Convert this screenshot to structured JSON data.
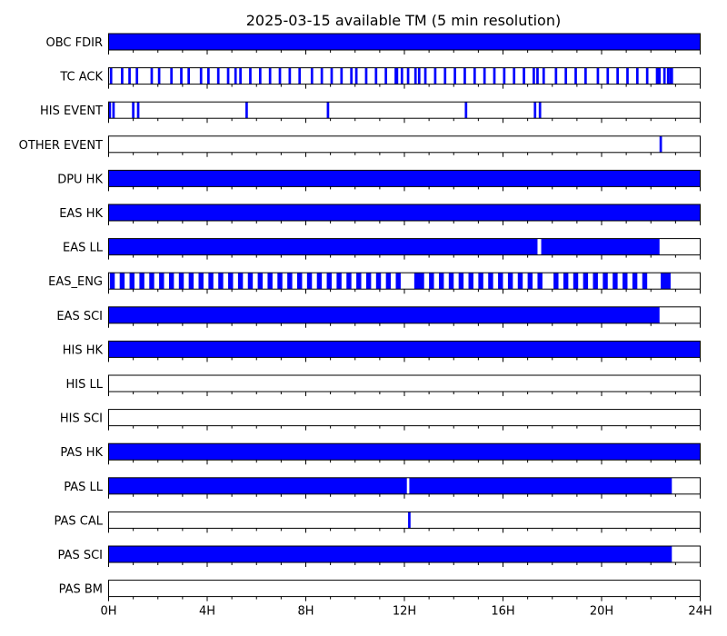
{
  "chart_data": {
    "type": "bar",
    "title": "2025-03-15 available TM (5 min resolution)",
    "xlabel": "",
    "ylabel": "",
    "x_unit": "hours",
    "xlim": [
      0,
      24
    ],
    "x_ticks": [
      0,
      4,
      8,
      12,
      16,
      20,
      24
    ],
    "x_tick_labels": [
      "0H",
      "4H",
      "8H",
      "12H",
      "16H",
      "20H",
      "24H"
    ],
    "minor_tick_step_hours": 1,
    "grid": false,
    "fill_color": "#0000ff",
    "series": [
      {
        "name": "OBC FDIR",
        "intervals": [
          [
            0,
            24
          ]
        ]
      },
      {
        "name": "TC ACK",
        "intervals": [
          [
            0.05,
            0.15
          ],
          [
            0.5,
            0.6
          ],
          [
            0.8,
            0.9
          ],
          [
            1.1,
            1.2
          ],
          [
            1.7,
            1.8
          ],
          [
            2.0,
            2.1
          ],
          [
            2.5,
            2.6
          ],
          [
            2.9,
            3.0
          ],
          [
            3.2,
            3.3
          ],
          [
            3.7,
            3.8
          ],
          [
            4.0,
            4.1
          ],
          [
            4.4,
            4.5
          ],
          [
            4.8,
            4.9
          ],
          [
            5.1,
            5.2
          ],
          [
            5.3,
            5.4
          ],
          [
            5.7,
            5.8
          ],
          [
            6.1,
            6.2
          ],
          [
            6.5,
            6.6
          ],
          [
            6.9,
            7.0
          ],
          [
            7.3,
            7.4
          ],
          [
            7.7,
            7.8
          ],
          [
            8.2,
            8.3
          ],
          [
            8.6,
            8.7
          ],
          [
            9.0,
            9.1
          ],
          [
            9.4,
            9.5
          ],
          [
            9.8,
            9.9
          ],
          [
            10.0,
            10.1
          ],
          [
            10.4,
            10.5
          ],
          [
            10.8,
            10.9
          ],
          [
            11.2,
            11.3
          ],
          [
            11.6,
            11.75
          ],
          [
            11.85,
            11.95
          ],
          [
            12.1,
            12.2
          ],
          [
            12.4,
            12.5
          ],
          [
            12.55,
            12.65
          ],
          [
            12.8,
            12.9
          ],
          [
            13.2,
            13.3
          ],
          [
            13.6,
            13.7
          ],
          [
            14.0,
            14.1
          ],
          [
            14.4,
            14.5
          ],
          [
            14.8,
            14.9
          ],
          [
            15.2,
            15.3
          ],
          [
            15.6,
            15.7
          ],
          [
            16.0,
            16.1
          ],
          [
            16.4,
            16.5
          ],
          [
            16.8,
            16.9
          ],
          [
            17.2,
            17.3
          ],
          [
            17.35,
            17.45
          ],
          [
            17.6,
            17.7
          ],
          [
            18.1,
            18.2
          ],
          [
            18.5,
            18.6
          ],
          [
            18.9,
            19.0
          ],
          [
            19.3,
            19.4
          ],
          [
            19.8,
            19.9
          ],
          [
            20.2,
            20.3
          ],
          [
            20.6,
            20.7
          ],
          [
            21.0,
            21.1
          ],
          [
            21.4,
            21.5
          ],
          [
            21.8,
            21.9
          ],
          [
            22.2,
            22.4
          ],
          [
            22.5,
            22.6
          ],
          [
            22.65,
            22.75
          ],
          [
            22.75,
            22.9
          ]
        ]
      },
      {
        "name": "HIS EVENT",
        "intervals": [
          [
            0,
            0.1
          ],
          [
            0.15,
            0.25
          ],
          [
            0.95,
            1.05
          ],
          [
            1.15,
            1.25
          ],
          [
            5.55,
            5.65
          ],
          [
            8.85,
            8.95
          ],
          [
            14.45,
            14.55
          ],
          [
            17.25,
            17.35
          ],
          [
            17.45,
            17.55
          ]
        ]
      },
      {
        "name": "OTHER EVENT",
        "intervals": [
          [
            22.35,
            22.45
          ]
        ]
      },
      {
        "name": "DPU HK",
        "intervals": [
          [
            0,
            24
          ]
        ]
      },
      {
        "name": "EAS HK",
        "intervals": [
          [
            0,
            24
          ]
        ]
      },
      {
        "name": "EAS LL",
        "intervals": [
          [
            0,
            17.4
          ],
          [
            17.55,
            22.35
          ]
        ]
      },
      {
        "name": "EAS_ENG",
        "intervals": [
          [
            0.05,
            0.25
          ],
          [
            0.45,
            0.65
          ],
          [
            0.85,
            1.05
          ],
          [
            1.25,
            1.45
          ],
          [
            1.65,
            1.85
          ],
          [
            2.05,
            2.25
          ],
          [
            2.45,
            2.65
          ],
          [
            2.85,
            3.05
          ],
          [
            3.25,
            3.45
          ],
          [
            3.65,
            3.85
          ],
          [
            4.05,
            4.25
          ],
          [
            4.45,
            4.65
          ],
          [
            4.85,
            5.05
          ],
          [
            5.25,
            5.45
          ],
          [
            5.65,
            5.85
          ],
          [
            6.05,
            6.25
          ],
          [
            6.45,
            6.65
          ],
          [
            6.85,
            7.05
          ],
          [
            7.25,
            7.45
          ],
          [
            7.65,
            7.85
          ],
          [
            8.05,
            8.25
          ],
          [
            8.45,
            8.65
          ],
          [
            8.85,
            9.05
          ],
          [
            9.25,
            9.45
          ],
          [
            9.65,
            9.85
          ],
          [
            10.05,
            10.25
          ],
          [
            10.45,
            10.65
          ],
          [
            10.85,
            11.05
          ],
          [
            11.25,
            11.45
          ],
          [
            11.65,
            11.85
          ],
          [
            12.4,
            12.8
          ],
          [
            13.0,
            13.2
          ],
          [
            13.4,
            13.6
          ],
          [
            13.8,
            14.0
          ],
          [
            14.2,
            14.4
          ],
          [
            14.6,
            14.8
          ],
          [
            15.0,
            15.2
          ],
          [
            15.4,
            15.6
          ],
          [
            15.8,
            16.0
          ],
          [
            16.2,
            16.4
          ],
          [
            16.6,
            16.8
          ],
          [
            17.0,
            17.2
          ],
          [
            17.4,
            17.6
          ],
          [
            18.05,
            18.25
          ],
          [
            18.45,
            18.65
          ],
          [
            18.85,
            19.05
          ],
          [
            19.25,
            19.45
          ],
          [
            19.65,
            19.85
          ],
          [
            20.05,
            20.25
          ],
          [
            20.45,
            20.65
          ],
          [
            20.85,
            21.05
          ],
          [
            21.25,
            21.45
          ],
          [
            21.65,
            21.85
          ],
          [
            22.4,
            22.8
          ]
        ]
      },
      {
        "name": "EAS SCI",
        "intervals": [
          [
            0,
            22.35
          ]
        ]
      },
      {
        "name": "HIS HK",
        "intervals": [
          [
            0,
            24
          ]
        ]
      },
      {
        "name": "HIS LL",
        "intervals": []
      },
      {
        "name": "HIS SCI",
        "intervals": []
      },
      {
        "name": "PAS HK",
        "intervals": [
          [
            0,
            24
          ]
        ]
      },
      {
        "name": "PAS LL",
        "intervals": [
          [
            0,
            12.1
          ],
          [
            12.2,
            22.85
          ]
        ]
      },
      {
        "name": "PAS CAL",
        "intervals": [
          [
            12.15,
            12.25
          ]
        ]
      },
      {
        "name": "PAS SCI",
        "intervals": [
          [
            0,
            22.85
          ]
        ]
      },
      {
        "name": "PAS BM",
        "intervals": []
      }
    ]
  }
}
